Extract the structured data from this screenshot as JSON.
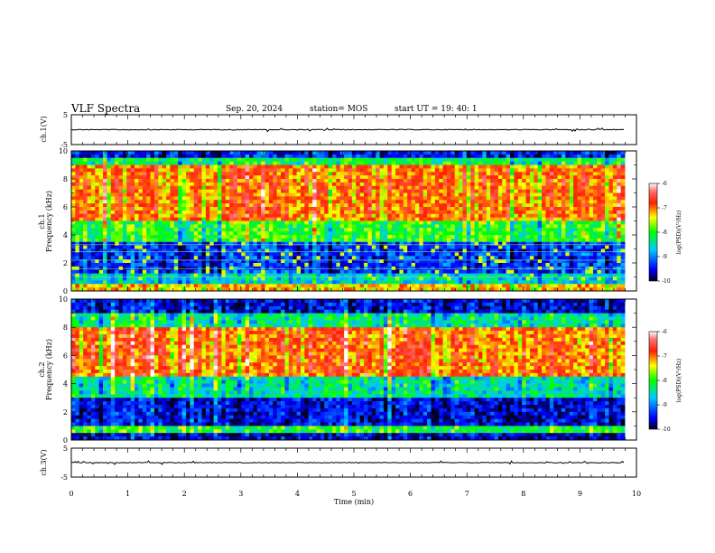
{
  "header": {
    "title": "VLF Spectra",
    "date": "Sep. 20, 2024",
    "station": "station= MOS",
    "start": "start  UT =   19: 40: 1"
  },
  "colorbar": {
    "label": "log(PSD)(V²/Hz)",
    "ticks": [
      "-6",
      "-7",
      "-8",
      "-9",
      "-10"
    ],
    "colors": [
      "#00001e",
      "#0000ff",
      "#00ffff",
      "#00ff00",
      "#ffff00",
      "#ff0000",
      "#ffffff"
    ]
  },
  "chart_data": [
    {
      "type": "line",
      "panel": "ch.1(V)",
      "ylabel": "ch.1(V)",
      "ylim": [
        -5,
        5
      ],
      "yticks": [
        "5",
        "-5"
      ],
      "xlim": [
        0,
        10
      ],
      "x_unit": "min",
      "series": [
        {
          "values_description_free": true,
          "level": 0
        }
      ]
    },
    {
      "type": "heatmap",
      "panel": "ch.1 spectrogram",
      "ylabel": "ch.1\nFrequency (kHz)",
      "ylabel_line1": "ch.1",
      "ylabel_line2": "Frequency (kHz)",
      "ylim": [
        0,
        10
      ],
      "yticks": [
        "0",
        "2",
        "4",
        "6",
        "8",
        "10"
      ],
      "xlim": [
        0,
        10
      ],
      "zlim": [
        -10,
        -6
      ],
      "bands": [
        {
          "from": 0,
          "to": 0.5,
          "level": -7.3
        },
        {
          "from": 0.5,
          "to": 1.2,
          "level": -8.6
        },
        {
          "from": 1.2,
          "to": 3.5,
          "level": -9.3
        },
        {
          "from": 3.5,
          "to": 5.0,
          "level": -8.0
        },
        {
          "from": 5.0,
          "to": 9.0,
          "level": -7.0
        },
        {
          "from": 9.0,
          "to": 9.5,
          "level": -8.2
        },
        {
          "from": 9.5,
          "to": 10,
          "level": -9.4
        }
      ]
    },
    {
      "type": "heatmap",
      "panel": "ch.2 spectrogram",
      "ylabel_line1": "ch.2",
      "ylabel_line2": "Frequency (kHz)",
      "ylim": [
        0,
        10
      ],
      "yticks": [
        "0",
        "2",
        "4",
        "6",
        "8",
        "10"
      ],
      "xlim": [
        0,
        10
      ],
      "zlim": [
        -10,
        -6
      ],
      "bands": [
        {
          "from": 0,
          "to": 0.4,
          "level": -9.6
        },
        {
          "from": 0.4,
          "to": 1.0,
          "level": -8.0
        },
        {
          "from": 1.0,
          "to": 3.0,
          "level": -9.5
        },
        {
          "from": 3.0,
          "to": 4.5,
          "level": -8.4
        },
        {
          "from": 4.5,
          "to": 8.0,
          "level": -6.9
        },
        {
          "from": 8.0,
          "to": 9.0,
          "level": -8.3
        },
        {
          "from": 9.0,
          "to": 10,
          "level": -9.5
        }
      ]
    },
    {
      "type": "line",
      "panel": "ch.3(V)",
      "ylabel": "ch.3(V)",
      "ylim": [
        -5,
        5
      ],
      "yticks": [
        "5",
        "-5"
      ],
      "xlim": [
        0,
        10
      ],
      "xticks": [
        "0",
        "1",
        "2",
        "3",
        "4",
        "5",
        "6",
        "7",
        "8",
        "9",
        "10"
      ],
      "xlabel": "Time (min)",
      "series": [
        {
          "level": 0
        }
      ]
    }
  ]
}
